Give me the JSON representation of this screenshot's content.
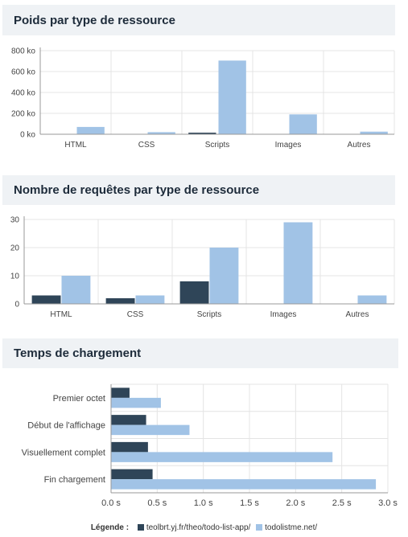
{
  "colors": {
    "series1": "#2f4558",
    "series2": "#a1c3e6",
    "grid": "#e4e4e4",
    "axis": "#999999"
  },
  "legend": {
    "title": "Légende :",
    "items": [
      "teolbrt.yj.fr/theo/todo-list-app/",
      "todolistme.net/"
    ]
  },
  "chart_data": [
    {
      "type": "bar",
      "title": "Poids par type de ressource",
      "categories": [
        "HTML",
        "CSS",
        "Scripts",
        "Images",
        "Autres"
      ],
      "series": [
        {
          "name": "teolbrt.yj.fr/theo/todo-list-app/",
          "values": [
            2,
            1,
            15,
            0,
            0
          ]
        },
        {
          "name": "todolistme.net/",
          "values": [
            70,
            20,
            705,
            190,
            25
          ]
        }
      ],
      "ylim": [
        0,
        800
      ],
      "yticks": [
        0,
        200,
        400,
        600,
        800
      ],
      "ytick_labels": [
        "0 ko",
        "200 ko",
        "400 ko",
        "600 ko",
        "800 ko"
      ],
      "grid": true
    },
    {
      "type": "bar",
      "title": "Nombre de requêtes par type de ressource",
      "categories": [
        "HTML",
        "CSS",
        "Scripts",
        "Images",
        "Autres"
      ],
      "series": [
        {
          "name": "teolbrt.yj.fr/theo/todo-list-app/",
          "values": [
            3,
            2,
            8,
            0,
            0
          ]
        },
        {
          "name": "todolistme.net/",
          "values": [
            10,
            3,
            20,
            29,
            3
          ]
        }
      ],
      "ylim": [
        0,
        30
      ],
      "yticks": [
        0,
        10,
        20,
        30
      ],
      "ytick_labels": [
        "0",
        "10",
        "20",
        "30"
      ],
      "grid": true
    },
    {
      "type": "bar",
      "orientation": "horizontal",
      "title": "Temps de chargement",
      "categories": [
        "Premier octet",
        "Début de l'affichage",
        "Visuellement complet",
        "Fin chargement"
      ],
      "series": [
        {
          "name": "teolbrt.yj.fr/theo/todo-list-app/",
          "values": [
            0.2,
            0.38,
            0.4,
            0.45
          ]
        },
        {
          "name": "todolistme.net/",
          "values": [
            0.54,
            0.85,
            2.4,
            2.87
          ]
        }
      ],
      "xlim": [
        0,
        3
      ],
      "xticks": [
        0,
        0.5,
        1,
        1.5,
        2,
        2.5,
        3
      ],
      "xtick_labels": [
        "0.0 s",
        "0.5 s",
        "1.0 s",
        "1.5 s",
        "2.0 s",
        "2.5 s",
        "3.0 s"
      ],
      "grid": true
    }
  ]
}
